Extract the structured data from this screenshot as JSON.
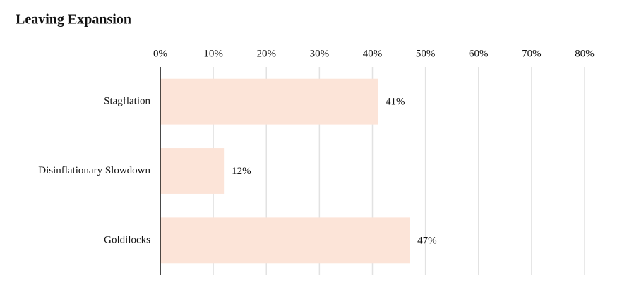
{
  "chart_data": {
    "type": "bar",
    "orientation": "horizontal",
    "title": "Leaving Expansion",
    "categories": [
      "Stagflation",
      "Disinflationary Slowdown",
      "Goldilocks"
    ],
    "values": [
      41,
      12,
      47
    ],
    "value_labels": [
      "41%",
      "12%",
      "47%"
    ],
    "color": "#fce4d8",
    "xlim": [
      0,
      80
    ],
    "xticks": [
      {
        "value": 0,
        "label": "0%"
      },
      {
        "value": 10,
        "label": "10%"
      },
      {
        "value": 20,
        "label": "20%"
      },
      {
        "value": 30,
        "label": "30%"
      },
      {
        "value": 40,
        "label": "40%"
      },
      {
        "value": 50,
        "label": "50%"
      },
      {
        "value": 60,
        "label": "60%"
      },
      {
        "value": 70,
        "label": "70%"
      },
      {
        "value": 80,
        "label": "80%"
      }
    ],
    "grid": true
  }
}
